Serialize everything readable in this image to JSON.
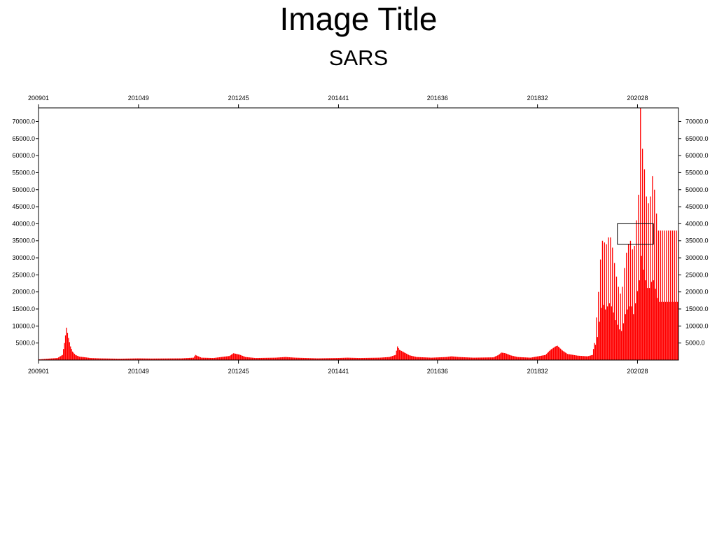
{
  "title": "Image Title",
  "subtitle": "SARS",
  "colors": {
    "series": "#ff0000",
    "axis": "#000000"
  },
  "chart_data": {
    "type": "bar",
    "title": "Image Title",
    "subtitle": "SARS",
    "xlabel": "",
    "ylabel": "",
    "xlim": [
      "200901",
      "202117"
    ],
    "ylim": [
      0,
      74000
    ],
    "x_ticks": [
      "200901",
      "201049",
      "201245",
      "201441",
      "201636",
      "201832",
      "202028"
    ],
    "y_ticks": [
      "5000.0",
      "10000.0",
      "15000.0",
      "20000.0",
      "25000.0",
      "30000.0",
      "35000.0",
      "40000.0",
      "45000.0",
      "50000.0",
      "55000.0",
      "60000.0",
      "65000.0",
      "70000.0"
    ],
    "grid": false,
    "legend": "none",
    "series": [
      {
        "values_by_week": [
          [
            "200901",
            200
          ],
          [
            "200910",
            400
          ],
          [
            "200920",
            600
          ],
          [
            "200925",
            1500
          ],
          [
            "200927",
            5000
          ],
          [
            "200929",
            9500
          ],
          [
            "200931",
            6500
          ],
          [
            "200933",
            4000
          ],
          [
            "200935",
            2500
          ],
          [
            "200938",
            1500
          ],
          [
            "200942",
            1000
          ],
          [
            "200948",
            800
          ],
          [
            "201001",
            600
          ],
          [
            "201010",
            500
          ],
          [
            "201030",
            400
          ],
          [
            "201049",
            500
          ],
          [
            "201110",
            450
          ],
          [
            "201140",
            500
          ],
          [
            "201152",
            700
          ],
          [
            "201202",
            1500
          ],
          [
            "201204",
            1200
          ],
          [
            "201208",
            700
          ],
          [
            "201220",
            600
          ],
          [
            "201236",
            1200
          ],
          [
            "201240",
            2000
          ],
          [
            "201246",
            1600
          ],
          [
            "201252",
            900
          ],
          [
            "201310",
            600
          ],
          [
            "201330",
            700
          ],
          [
            "201340",
            900
          ],
          [
            "201350",
            700
          ],
          [
            "201420",
            500
          ],
          [
            "201440",
            600
          ],
          [
            "201450",
            700
          ],
          [
            "201510",
            600
          ],
          [
            "201530",
            700
          ],
          [
            "201540",
            900
          ],
          [
            "201546",
            1500
          ],
          [
            "201548",
            4000
          ],
          [
            "201550",
            3000
          ],
          [
            "201603",
            2200
          ],
          [
            "201608",
            1400
          ],
          [
            "201615",
            900
          ],
          [
            "201630",
            700
          ],
          [
            "201645",
            900
          ],
          [
            "201650",
            1100
          ],
          [
            "201705",
            900
          ],
          [
            "201720",
            700
          ],
          [
            "201740",
            800
          ],
          [
            "201745",
            1500
          ],
          [
            "201748",
            2200
          ],
          [
            "201752",
            2000
          ],
          [
            "201805",
            1400
          ],
          [
            "201812",
            900
          ],
          [
            "201825",
            700
          ],
          [
            "201840",
            1500
          ],
          [
            "201845",
            3000
          ],
          [
            "201850",
            4000
          ],
          [
            "201852",
            4200
          ],
          [
            "201905",
            2800
          ],
          [
            "201910",
            1800
          ],
          [
            "201920",
            1300
          ],
          [
            "201930",
            1100
          ],
          [
            "201935",
            1500
          ],
          [
            "201937",
            5000
          ],
          [
            "201938",
            10000
          ],
          [
            "201940",
            15000
          ],
          [
            "201942",
            25000
          ],
          [
            "201944",
            34000
          ],
          [
            "201946",
            36000
          ],
          [
            "201948",
            33000
          ],
          [
            "201950",
            35000
          ],
          [
            "201952",
            37000
          ],
          [
            "202002",
            35000
          ],
          [
            "202004",
            31000
          ],
          [
            "202006",
            26000
          ],
          [
            "202008",
            23000
          ],
          [
            "202010",
            20000
          ],
          [
            "202012",
            19000
          ],
          [
            "202014",
            24000
          ],
          [
            "202016",
            30000
          ],
          [
            "202018",
            33000
          ],
          [
            "202020",
            35000
          ],
          [
            "202022",
            35000
          ],
          [
            "202024",
            30000
          ],
          [
            "202026",
            37000
          ],
          [
            "202028",
            45000
          ],
          [
            "202030",
            52000
          ],
          [
            "202031",
            74000
          ],
          [
            "202033",
            62000
          ],
          [
            "202035",
            56000
          ],
          [
            "202037",
            48000
          ],
          [
            "202039",
            46000
          ],
          [
            "202041",
            48000
          ],
          [
            "202043",
            54000
          ],
          [
            "202045",
            50000
          ],
          [
            "202047",
            43000
          ],
          [
            "202049",
            38000
          ]
        ]
      }
    ],
    "annotations": [
      {
        "type": "rectangle",
        "x_range": [
          "202031",
          "202044"
        ],
        "y_range": [
          34000,
          40000
        ]
      }
    ]
  }
}
